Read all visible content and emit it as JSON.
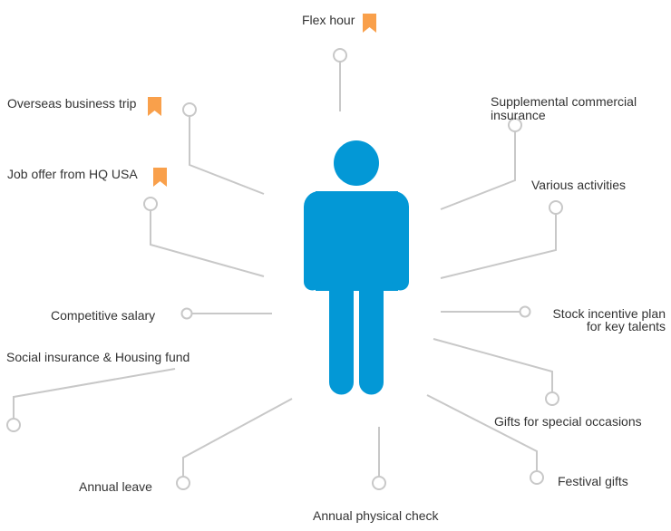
{
  "colors": {
    "figure": "#0398D6",
    "connector": "#C8C8C8",
    "bookmark": "#F9A04B",
    "text": "#333333"
  },
  "icons": {
    "center": "person-icon",
    "marker": "bookmark-icon",
    "endpoint": "circle-node-icon"
  },
  "benefits": {
    "flex_hour": "Flex hour",
    "overseas_trip": "Overseas business trip",
    "job_offer_hq": "Job offer from HQ USA",
    "supplemental_insurance_1": "Supplemental commercial",
    "supplemental_insurance_2": "insurance",
    "various_activities": "Various activities",
    "competitive_salary": "Competitive salary",
    "stock_incentive_1": "Stock incentive plan",
    "stock_incentive_2": "for key talents",
    "social_insurance": "Social insurance & Housing fund",
    "gifts_special": "Gifts for special occasions",
    "annual_leave": "Annual leave",
    "festival_gifts": "Festival gifts",
    "physical_check": "Annual physical check"
  }
}
